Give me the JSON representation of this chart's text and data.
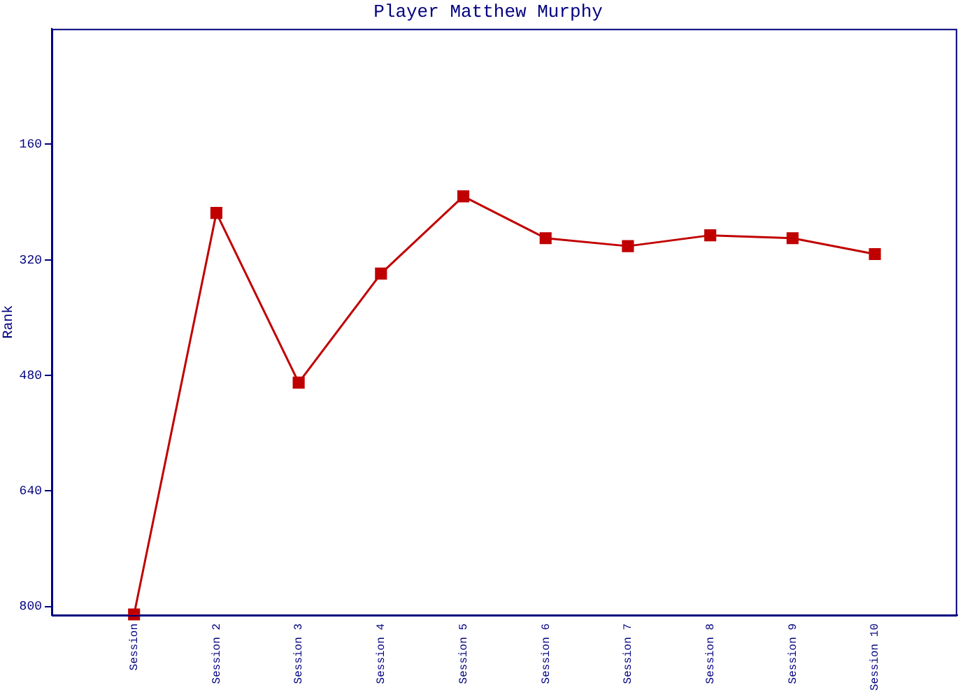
{
  "chart_data": {
    "type": "line",
    "title": "Player Matthew Murphy",
    "ylabel": "Rank",
    "categories": [
      "Session",
      "Session 2",
      "Session 3",
      "Session 4",
      "Session 5",
      "Session 6",
      "Session 7",
      "Session 8",
      "Session 9",
      "Session 10"
    ],
    "series": [
      {
        "color": "#c00000",
        "values": [
          811,
          255,
          490,
          339,
          232,
          290,
          301,
          286,
          290,
          312
        ]
      }
    ],
    "ylim": [
      812,
      0
    ],
    "yticks": [
      160,
      320,
      480,
      640,
      800
    ],
    "grid": false,
    "legend": false,
    "marker": "square",
    "line_style": "solid"
  }
}
